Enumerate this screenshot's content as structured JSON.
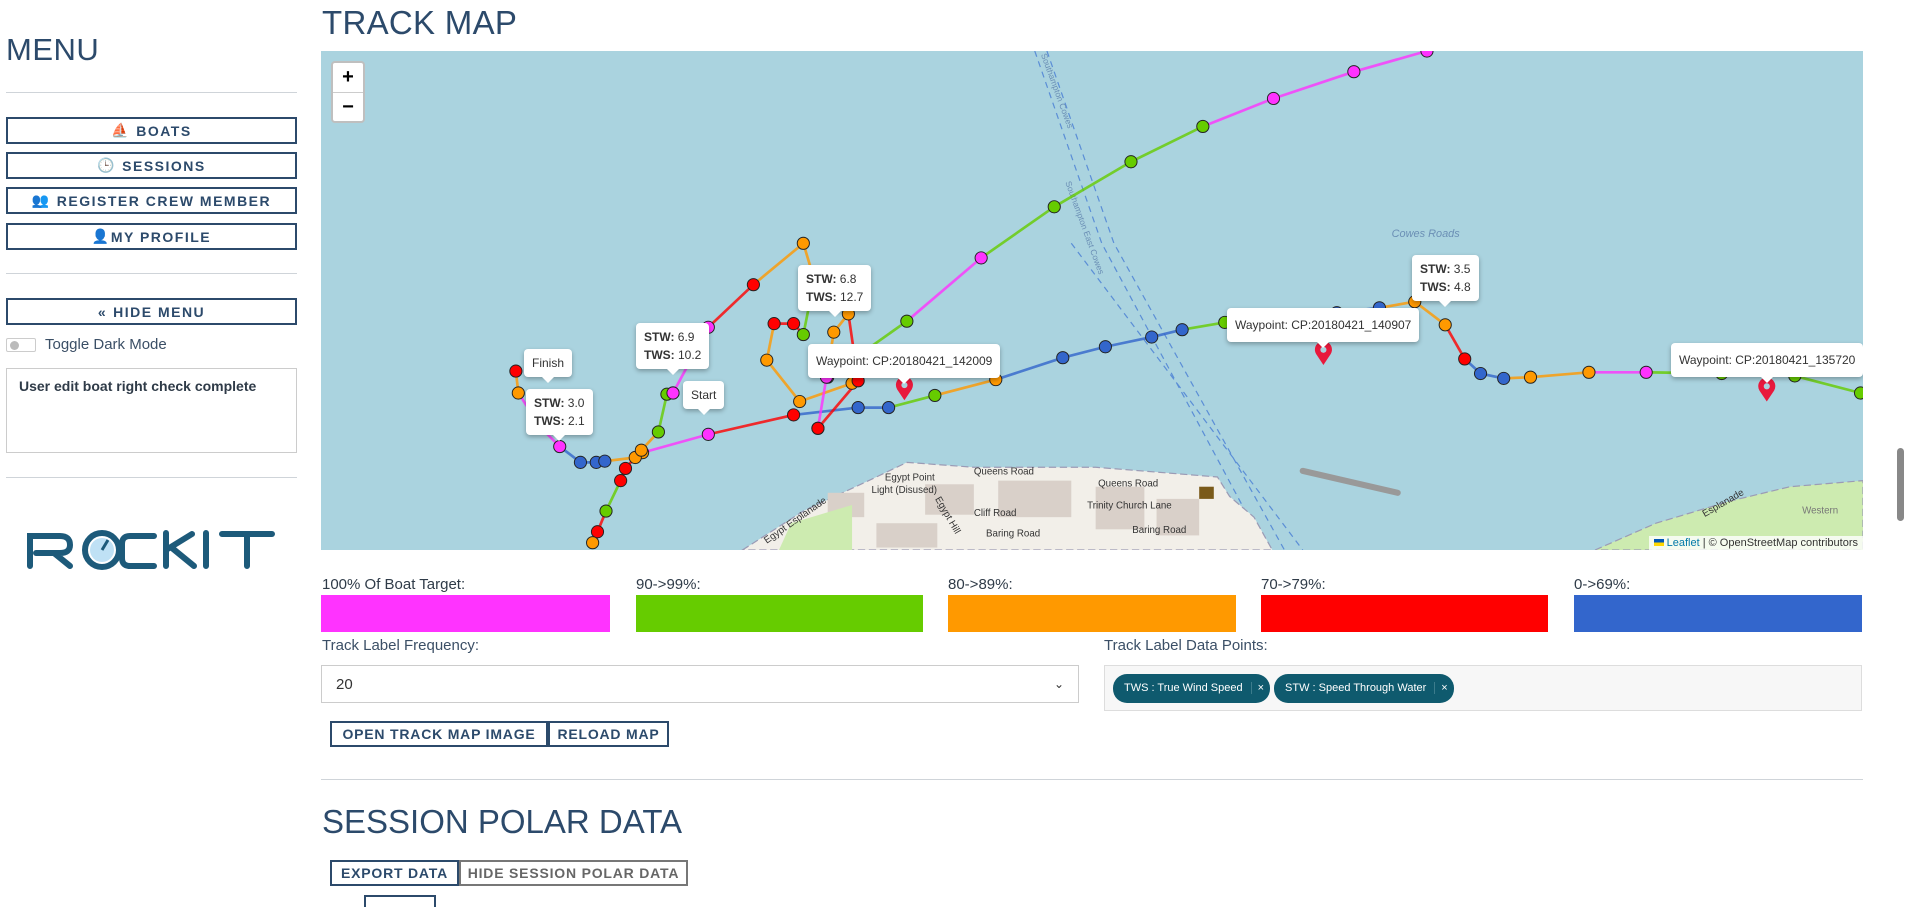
{
  "sidebar": {
    "title": "MENU",
    "buttons": [
      {
        "label": "BOATS",
        "icon": "sailboat-icon"
      },
      {
        "label": "SESSIONS",
        "icon": "clock-icon"
      },
      {
        "label": "REGISTER CREW MEMBER",
        "icon": "users-icon"
      },
      {
        "label": "MY PROFILE",
        "icon": "user-icon"
      }
    ],
    "hide_menu": "HIDE MENU",
    "toggle_label": "Toggle Dark Mode",
    "dark_mode": false,
    "note": "User edit boat right check complete",
    "logo_text": "ROCKIT"
  },
  "track_map": {
    "title": "TRACK MAP",
    "zoom_in": "+",
    "zoom_out": "−",
    "popups": {
      "finish": "Finish",
      "start": "Start",
      "p1": {
        "stw_label": "STW:",
        "stw": "3.0",
        "tws_label": "TWS:",
        "tws": "2.1"
      },
      "p2": {
        "stw_label": "STW:",
        "stw": "6.9",
        "tws_label": "TWS:",
        "tws": "10.2"
      },
      "p3": {
        "stw_label": "STW:",
        "stw": "6.8",
        "tws_label": "TWS:",
        "tws": "12.7"
      },
      "p4": {
        "stw_label": "STW:",
        "stw": "3.5",
        "tws_label": "TWS:",
        "tws": "4.8"
      },
      "wp1": "Waypoint: CP:20180421_142009",
      "wp2": "Waypoint: CP:20180421_140907",
      "wp3": "Waypoint: CP:20180421_135720"
    },
    "map_labels": {
      "cowes_roads": "Cowes Roads",
      "channel": "Southampton East Cowes",
      "channel2": "Southampton Cowes",
      "queens_road": "Queens Road",
      "queens_road2": "Queens Road",
      "egypt_point": "Egypt Point",
      "egypt_point2": "Light (Disused)",
      "cliff_road": "Cliff Road",
      "baring_road": "Baring Road",
      "baring_road2": "Baring Road",
      "trinity": "Trinity Church Lane",
      "egypt_hill": "Egypt Hill",
      "egypt_esplanade": "Egypt Esplanade",
      "esplanade": "Esplanade",
      "western": "Western"
    },
    "attribution": {
      "leaflet": "Leaflet",
      "rest": " | © OpenStreetMap contributors"
    }
  },
  "legend": [
    {
      "label": "100% Of Boat Target:",
      "color": "#ff33ff"
    },
    {
      "label": "90->99%:",
      "color": "#66cc00"
    },
    {
      "label": "80->89%:",
      "color": "#ff9900"
    },
    {
      "label": "70->79%:",
      "color": "#ff0000"
    },
    {
      "label": "0->69%:",
      "color": "#3366cc"
    }
  ],
  "label_frequency": {
    "label": "Track Label Frequency:",
    "value": "20"
  },
  "label_data_points": {
    "label": "Track Label Data Points:",
    "tags": [
      "TWS : True Wind Speed",
      "STW : Speed Through Water"
    ],
    "remove": "×"
  },
  "actions": {
    "open_image": "OPEN TRACK MAP IMAGE",
    "reload": "RELOAD MAP"
  },
  "polar": {
    "title": "SESSION POLAR DATA",
    "export": "EXPORT DATA",
    "hide": "HIDE SESSION POLAR DATA"
  }
}
